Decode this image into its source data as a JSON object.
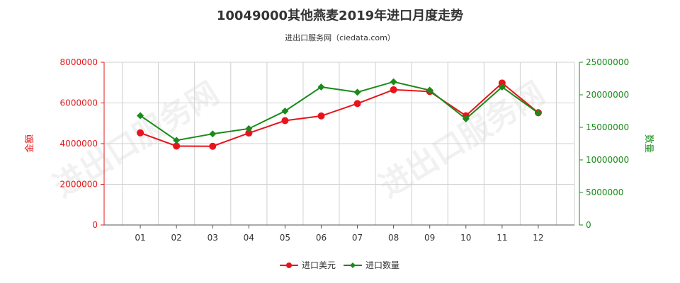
{
  "title": "10049000其他燕麦2019年进口月度走势",
  "subtitle": "进出口服务网（ciedata.com）",
  "watermark": "进出口服务网",
  "chart_data": {
    "type": "line",
    "categories": [
      "01",
      "02",
      "03",
      "04",
      "05",
      "06",
      "07",
      "08",
      "09",
      "10",
      "11",
      "12"
    ],
    "y_left": {
      "label": "金额",
      "ylim": [
        0,
        8000000
      ],
      "ticks": [
        "0",
        "2000000",
        "4000000",
        "6000000",
        "8000000"
      ],
      "color": "#e31a1c"
    },
    "y_right": {
      "label": "数量",
      "ylim": [
        0,
        25000000
      ],
      "ticks": [
        "0",
        "5000000",
        "10000000",
        "15000000",
        "20000000",
        "25000000"
      ],
      "color": "#1a8a1a"
    },
    "series": [
      {
        "name": "进口美元",
        "axis": "left",
        "color": "#e8141b",
        "marker": "circle",
        "values": [
          4530000,
          3880000,
          3870000,
          4520000,
          5130000,
          5360000,
          5970000,
          6650000,
          6560000,
          5370000,
          6980000,
          5520000
        ]
      },
      {
        "name": "进口数量",
        "axis": "right",
        "color": "#1a8a1a",
        "marker": "diamond",
        "values": [
          16800000,
          13000000,
          14000000,
          14800000,
          17500000,
          21200000,
          20400000,
          22000000,
          20700000,
          16300000,
          21200000,
          17200000
        ]
      }
    ],
    "grid": true,
    "legend_position": "bottom-center"
  }
}
